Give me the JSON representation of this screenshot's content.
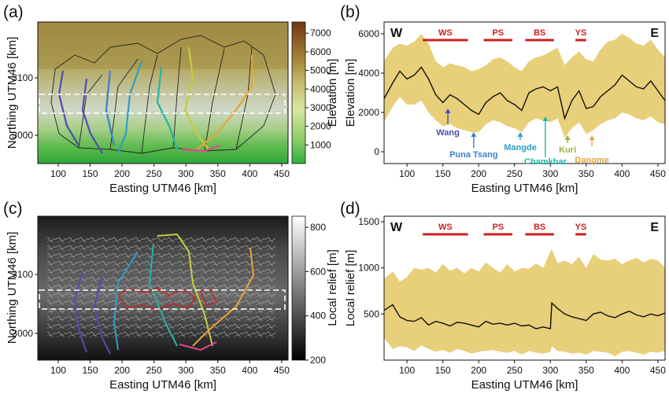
{
  "panels": {
    "a": {
      "label": "(a)",
      "xlabel": "Easting UTM46 [km]",
      "ylabel": "Northing UTM46 [km]",
      "colorbar_label": "Elevation [m]",
      "colorbar_ticks": [
        "1000",
        "2000",
        "3000",
        "4000",
        "5000",
        "6000",
        "7000"
      ]
    },
    "b": {
      "label": "(b)"
    },
    "c": {
      "label": "(c)",
      "xlabel": "Easting UTM46 [km]",
      "ylabel": "Northing UTM46 [km]",
      "colorbar_label": "Local relief [m]",
      "colorbar_ticks": [
        "200",
        "400",
        "600",
        "800"
      ]
    },
    "d": {
      "label": "(d)"
    }
  },
  "map_axes": {
    "x_ticks": [
      "100",
      "150",
      "200",
      "250",
      "300",
      "350",
      "400",
      "450"
    ],
    "y_ticks": [
      "3000",
      "3100"
    ]
  },
  "colors": {
    "band": "#e8cf7a",
    "median": "#111111",
    "regions": "#cc1f1f",
    "river_colors": [
      "#4d4db3",
      "#3a7fd0",
      "#2e9ec8",
      "#22b5a6",
      "#79b536",
      "#c9cb3a",
      "#e8a33a",
      "#e0498e"
    ]
  },
  "chart_data": [
    {
      "type": "area",
      "id": "b",
      "xlabel": "Easting UTM46 [km]",
      "ylabel": "Elevation [m]",
      "xlim": [
        68,
        460
      ],
      "ylim": [
        -600,
        6600
      ],
      "x_ticks": [
        100,
        150,
        200,
        250,
        300,
        350,
        400,
        450
      ],
      "y_ticks": [
        0,
        2000,
        4000,
        6000
      ],
      "corner_left": "W",
      "corner_right": "E",
      "regions": [
        {
          "name": "WS",
          "start": 122,
          "end": 185
        },
        {
          "name": "PS",
          "start": 207,
          "end": 247
        },
        {
          "name": "BS",
          "start": 265,
          "end": 305
        },
        {
          "name": "YS",
          "start": 335,
          "end": 350
        }
      ],
      "rivers": [
        {
          "name": "Wang",
          "x": 157
        },
        {
          "name": "Puna Tsang",
          "x": 193
        },
        {
          "name": "Mangde",
          "x": 258
        },
        {
          "name": "Chamkhar",
          "x": 293
        },
        {
          "name": "Kuri",
          "x": 324
        },
        {
          "name": "Dangme",
          "x": 358
        }
      ],
      "x": [
        68,
        80,
        90,
        100,
        110,
        120,
        130,
        140,
        150,
        160,
        170,
        180,
        190,
        200,
        210,
        220,
        230,
        240,
        250,
        260,
        270,
        280,
        290,
        300,
        310,
        320,
        330,
        340,
        350,
        360,
        370,
        380,
        390,
        400,
        410,
        420,
        430,
        440,
        450,
        460
      ],
      "median": [
        2700,
        3500,
        4100,
        3700,
        3900,
        4300,
        3700,
        2900,
        2500,
        2900,
        2700,
        2400,
        2100,
        1900,
        2500,
        2800,
        3000,
        2600,
        2400,
        2100,
        3000,
        3200,
        3300,
        3100,
        3300,
        1700,
        2600,
        3100,
        2200,
        2300,
        2800,
        3100,
        3400,
        3900,
        3600,
        3300,
        3200,
        3600,
        3100,
        2600
      ],
      "upper": [
        4600,
        5300,
        5500,
        5400,
        5600,
        6000,
        5500,
        4600,
        4300,
        4500,
        4400,
        4300,
        4100,
        4200,
        4400,
        4700,
        4800,
        4600,
        4300,
        4100,
        4600,
        4800,
        4900,
        5100,
        5300,
        4400,
        4800,
        5100,
        4700,
        4600,
        5200,
        5600,
        5700,
        6000,
        5800,
        5500,
        5400,
        5700,
        5200,
        4800
      ],
      "lower": [
        1500,
        2300,
        2800,
        2400,
        2400,
        2600,
        2000,
        1600,
        1300,
        1400,
        1200,
        1100,
        1000,
        1000,
        1400,
        1600,
        1500,
        1300,
        1200,
        1000,
        1500,
        1700,
        1600,
        1500,
        1700,
        700,
        1200,
        1500,
        900,
        1100,
        1400,
        1600,
        1700,
        2000,
        1900,
        1700,
        1600,
        1800,
        1500,
        1400
      ]
    },
    {
      "type": "area",
      "id": "d",
      "xlabel": "Easting UTM46 [km]",
      "ylabel": "Local relief [m]",
      "xlim": [
        68,
        460
      ],
      "ylim": [
        0,
        1560
      ],
      "x_ticks": [
        100,
        150,
        200,
        250,
        300,
        350,
        400,
        450
      ],
      "y_ticks": [
        500,
        1000,
        1500
      ],
      "corner_left": "W",
      "corner_right": "E",
      "regions": [
        {
          "name": "WS",
          "start": 122,
          "end": 185
        },
        {
          "name": "PS",
          "start": 207,
          "end": 247
        },
        {
          "name": "BS",
          "start": 265,
          "end": 305
        },
        {
          "name": "YS",
          "start": 335,
          "end": 350
        }
      ],
      "x": [
        68,
        80,
        90,
        100,
        110,
        120,
        130,
        140,
        150,
        160,
        170,
        180,
        190,
        200,
        210,
        220,
        230,
        240,
        250,
        260,
        270,
        280,
        290,
        300,
        302,
        310,
        320,
        330,
        340,
        350,
        360,
        370,
        380,
        390,
        400,
        410,
        420,
        430,
        440,
        450,
        460
      ],
      "median": [
        540,
        600,
        470,
        430,
        420,
        460,
        380,
        420,
        400,
        370,
        410,
        400,
        380,
        360,
        420,
        390,
        400,
        380,
        400,
        370,
        380,
        340,
        360,
        340,
        620,
        560,
        500,
        470,
        450,
        430,
        500,
        520,
        480,
        460,
        500,
        530,
        490,
        470,
        500,
        480,
        510
      ],
      "upper": [
        880,
        960,
        850,
        900,
        1000,
        980,
        1000,
        950,
        1040,
        970,
        1000,
        940,
        1000,
        960,
        1060,
        1000,
        950,
        1040,
        960,
        1000,
        990,
        1050,
        1000,
        1180,
        1200,
        1050,
        1080,
        1040,
        1120,
        1000,
        1150,
        1090,
        1080,
        1100,
        1040,
        1080,
        1110,
        1060,
        1100,
        1080,
        1000
      ],
      "lower": [
        240,
        120,
        150,
        140,
        100,
        160,
        120,
        90,
        110,
        80,
        120,
        100,
        70,
        90,
        100,
        110,
        90,
        80,
        100,
        60,
        100,
        80,
        70,
        90,
        150,
        100,
        90,
        70,
        80,
        60,
        100,
        90,
        80,
        40,
        90,
        100,
        80,
        60,
        90,
        80,
        100
      ]
    }
  ]
}
